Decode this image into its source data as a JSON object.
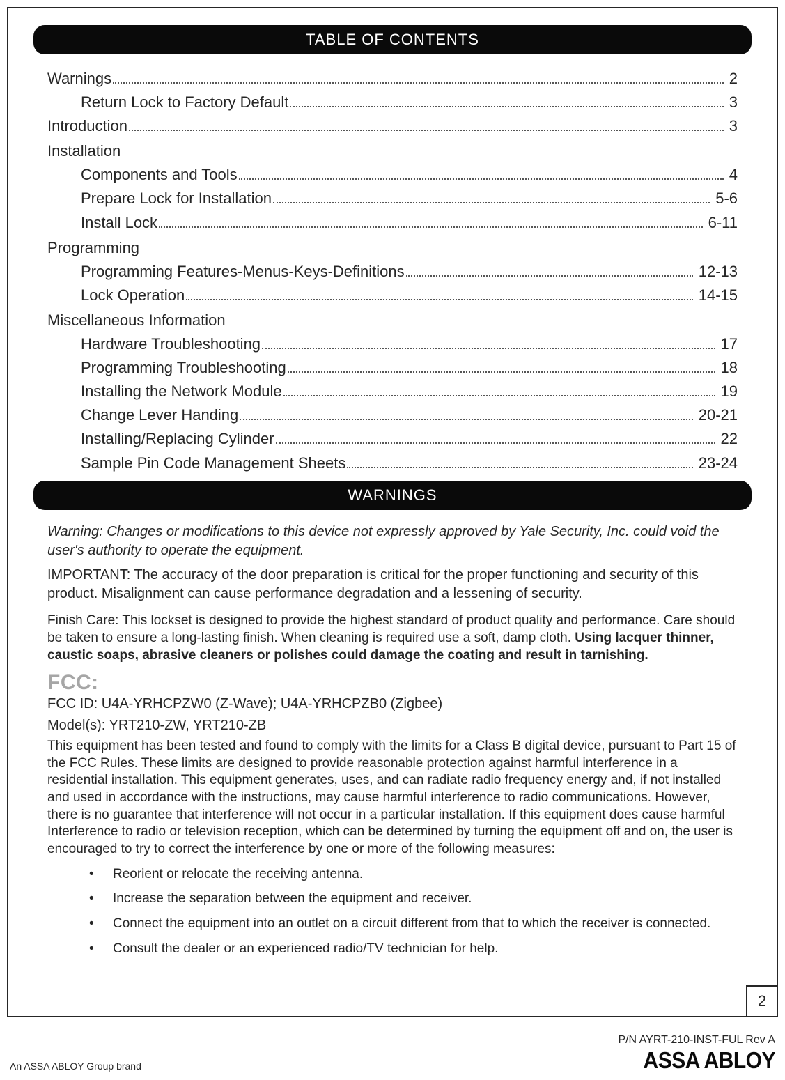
{
  "headers": {
    "toc": "TABLE OF CONTENTS",
    "warnings": "WARNINGS"
  },
  "toc": {
    "items": [
      {
        "label": "Warnings",
        "page": "2",
        "sub": false,
        "dots": true
      },
      {
        "label": "Return Lock to Factory Default",
        "page": "3",
        "sub": true,
        "dots": true
      },
      {
        "label": "Introduction",
        "page": "3",
        "sub": false,
        "dots": true
      },
      {
        "label": "Installation",
        "page": "",
        "sub": false,
        "dots": false
      },
      {
        "label": "Components and Tools",
        "page": "4",
        "sub": true,
        "dots": true
      },
      {
        "label": "Prepare Lock for Installation",
        "page": "5-6",
        "sub": true,
        "dots": true
      },
      {
        "label": "Install Lock",
        "page": "6-11",
        "sub": true,
        "dots": true
      },
      {
        "label": "Programming",
        "page": "",
        "sub": false,
        "dots": false
      },
      {
        "label": "Programming Features-Menus-Keys-Definitions",
        "page": "12-13",
        "sub": true,
        "dots": true
      },
      {
        "label": "Lock Operation",
        "page": "14-15",
        "sub": true,
        "dots": true
      },
      {
        "label": "Miscellaneous Information",
        "page": "",
        "sub": false,
        "dots": false
      },
      {
        "label": "Hardware Troubleshooting",
        "page": "17",
        "sub": true,
        "dots": true
      },
      {
        "label": "Programming Troubleshooting",
        "page": "18",
        "sub": true,
        "dots": true
      },
      {
        "label": "Installing the Network Module",
        "page": "19",
        "sub": true,
        "dots": true
      },
      {
        "label": "Change Lever Handing",
        "page": "20-21",
        "sub": true,
        "dots": true
      },
      {
        "label": "Installing/Replacing Cylinder",
        "page": "22",
        "sub": true,
        "dots": true
      },
      {
        "label": "Sample Pin Code Management Sheets",
        "page": "23-24",
        "sub": true,
        "dots": true
      }
    ]
  },
  "warnings": {
    "italic": "Warning: Changes or modifications to this device not expressly approved by Yale Security, Inc. could void the user's authority to operate the equipment.",
    "important": "IMPORTANT: The accuracy of the door preparation is critical for the proper functioning and security of this product. Misalignment can cause performance degradation and a lessening of security.",
    "finish_pre": "Finish Care: This lockset is designed to provide the highest standard of product quality and performance. Care should be taken to ensure a long-lasting finish. When cleaning is required use a soft, damp cloth. ",
    "finish_bold": "Using lacquer thinner, caustic soaps, abrasive cleaners or polishes could damage the coating and result in tarnishing."
  },
  "fcc": {
    "label": "FCC:",
    "id": "FCC ID: U4A-YRHCPZW0 (Z-Wave); U4A-YRHCPZB0 (Zigbee)",
    "models": "Model(s): YRT210-ZW, YRT210-ZB",
    "body": "This equipment has been tested and found to comply with the limits for a Class B digital device, pursuant to Part 15 of the FCC Rules. These limits are designed to provide reasonable protection against harmful interference in a residential installation. This equipment generates, uses, and can radiate radio frequency energy and, if not installed and used in accordance with the instructions, may cause harmful interference to radio communications. However, there is no guarantee that interference will not occur in a particular installation. If this equipment does cause harmful Interference to radio or television reception, which can be determined by turning the equipment off and on, the user is encouraged to try to correct the interference by one or more of the following measures:",
    "bullets": [
      "Reorient or relocate the receiving antenna.",
      "Increase the separation between the equipment and receiver.",
      "Connect the equipment into an outlet on a circuit different from that to which the receiver is connected.",
      "Consult the dealer or an experienced radio/TV technician for help."
    ]
  },
  "page_number": "2",
  "footer": {
    "left": "An ASSA ABLOY Group brand",
    "pn": "P/N AYRT-210-INST-FUL Rev A",
    "logo": "ASSA ABLOY"
  }
}
